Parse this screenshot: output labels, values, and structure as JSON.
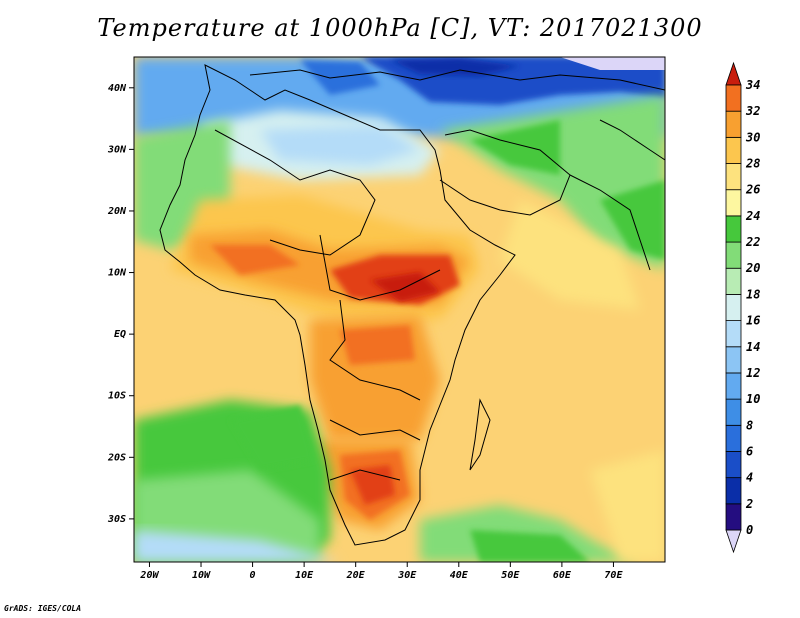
{
  "title": "Temperature at 1000hPa [C], VT: 2017021300",
  "credit": "GrADS: IGES/COLA",
  "map": {
    "variable": "Temperature at 1000hPa",
    "units": "C",
    "valid_time": "2017021300",
    "lon_range": [
      -23,
      80
    ],
    "lat_range": [
      -37,
      45
    ],
    "lon_ticks": [
      "20W",
      "10W",
      "0",
      "10E",
      "20E",
      "30E",
      "40E",
      "50E",
      "60E",
      "70E"
    ],
    "lat_ticks": [
      "40N",
      "30N",
      "20N",
      "10N",
      "EQ",
      "10S",
      "20S",
      "30S"
    ]
  },
  "colorbar": {
    "levels": [
      "0",
      "2",
      "4",
      "6",
      "8",
      "10",
      "12",
      "14",
      "16",
      "18",
      "20",
      "22",
      "24",
      "26",
      "28",
      "30",
      "32",
      "34"
    ],
    "colors": [
      "#240d80",
      "#0a2ea8",
      "#1a4ec8",
      "#2a6fdc",
      "#3e8ee6",
      "#62aaf0",
      "#8cc5f4",
      "#b4dcf8",
      "#d6f0f0",
      "#b8ecb4",
      "#82dc78",
      "#46c83c",
      "#fdf7a0",
      "#fde27e",
      "#fcc64e",
      "#f8a030",
      "#f27020",
      "#e24014",
      "#c81e0e"
    ],
    "low_end_color": "#dcd6f8"
  }
}
